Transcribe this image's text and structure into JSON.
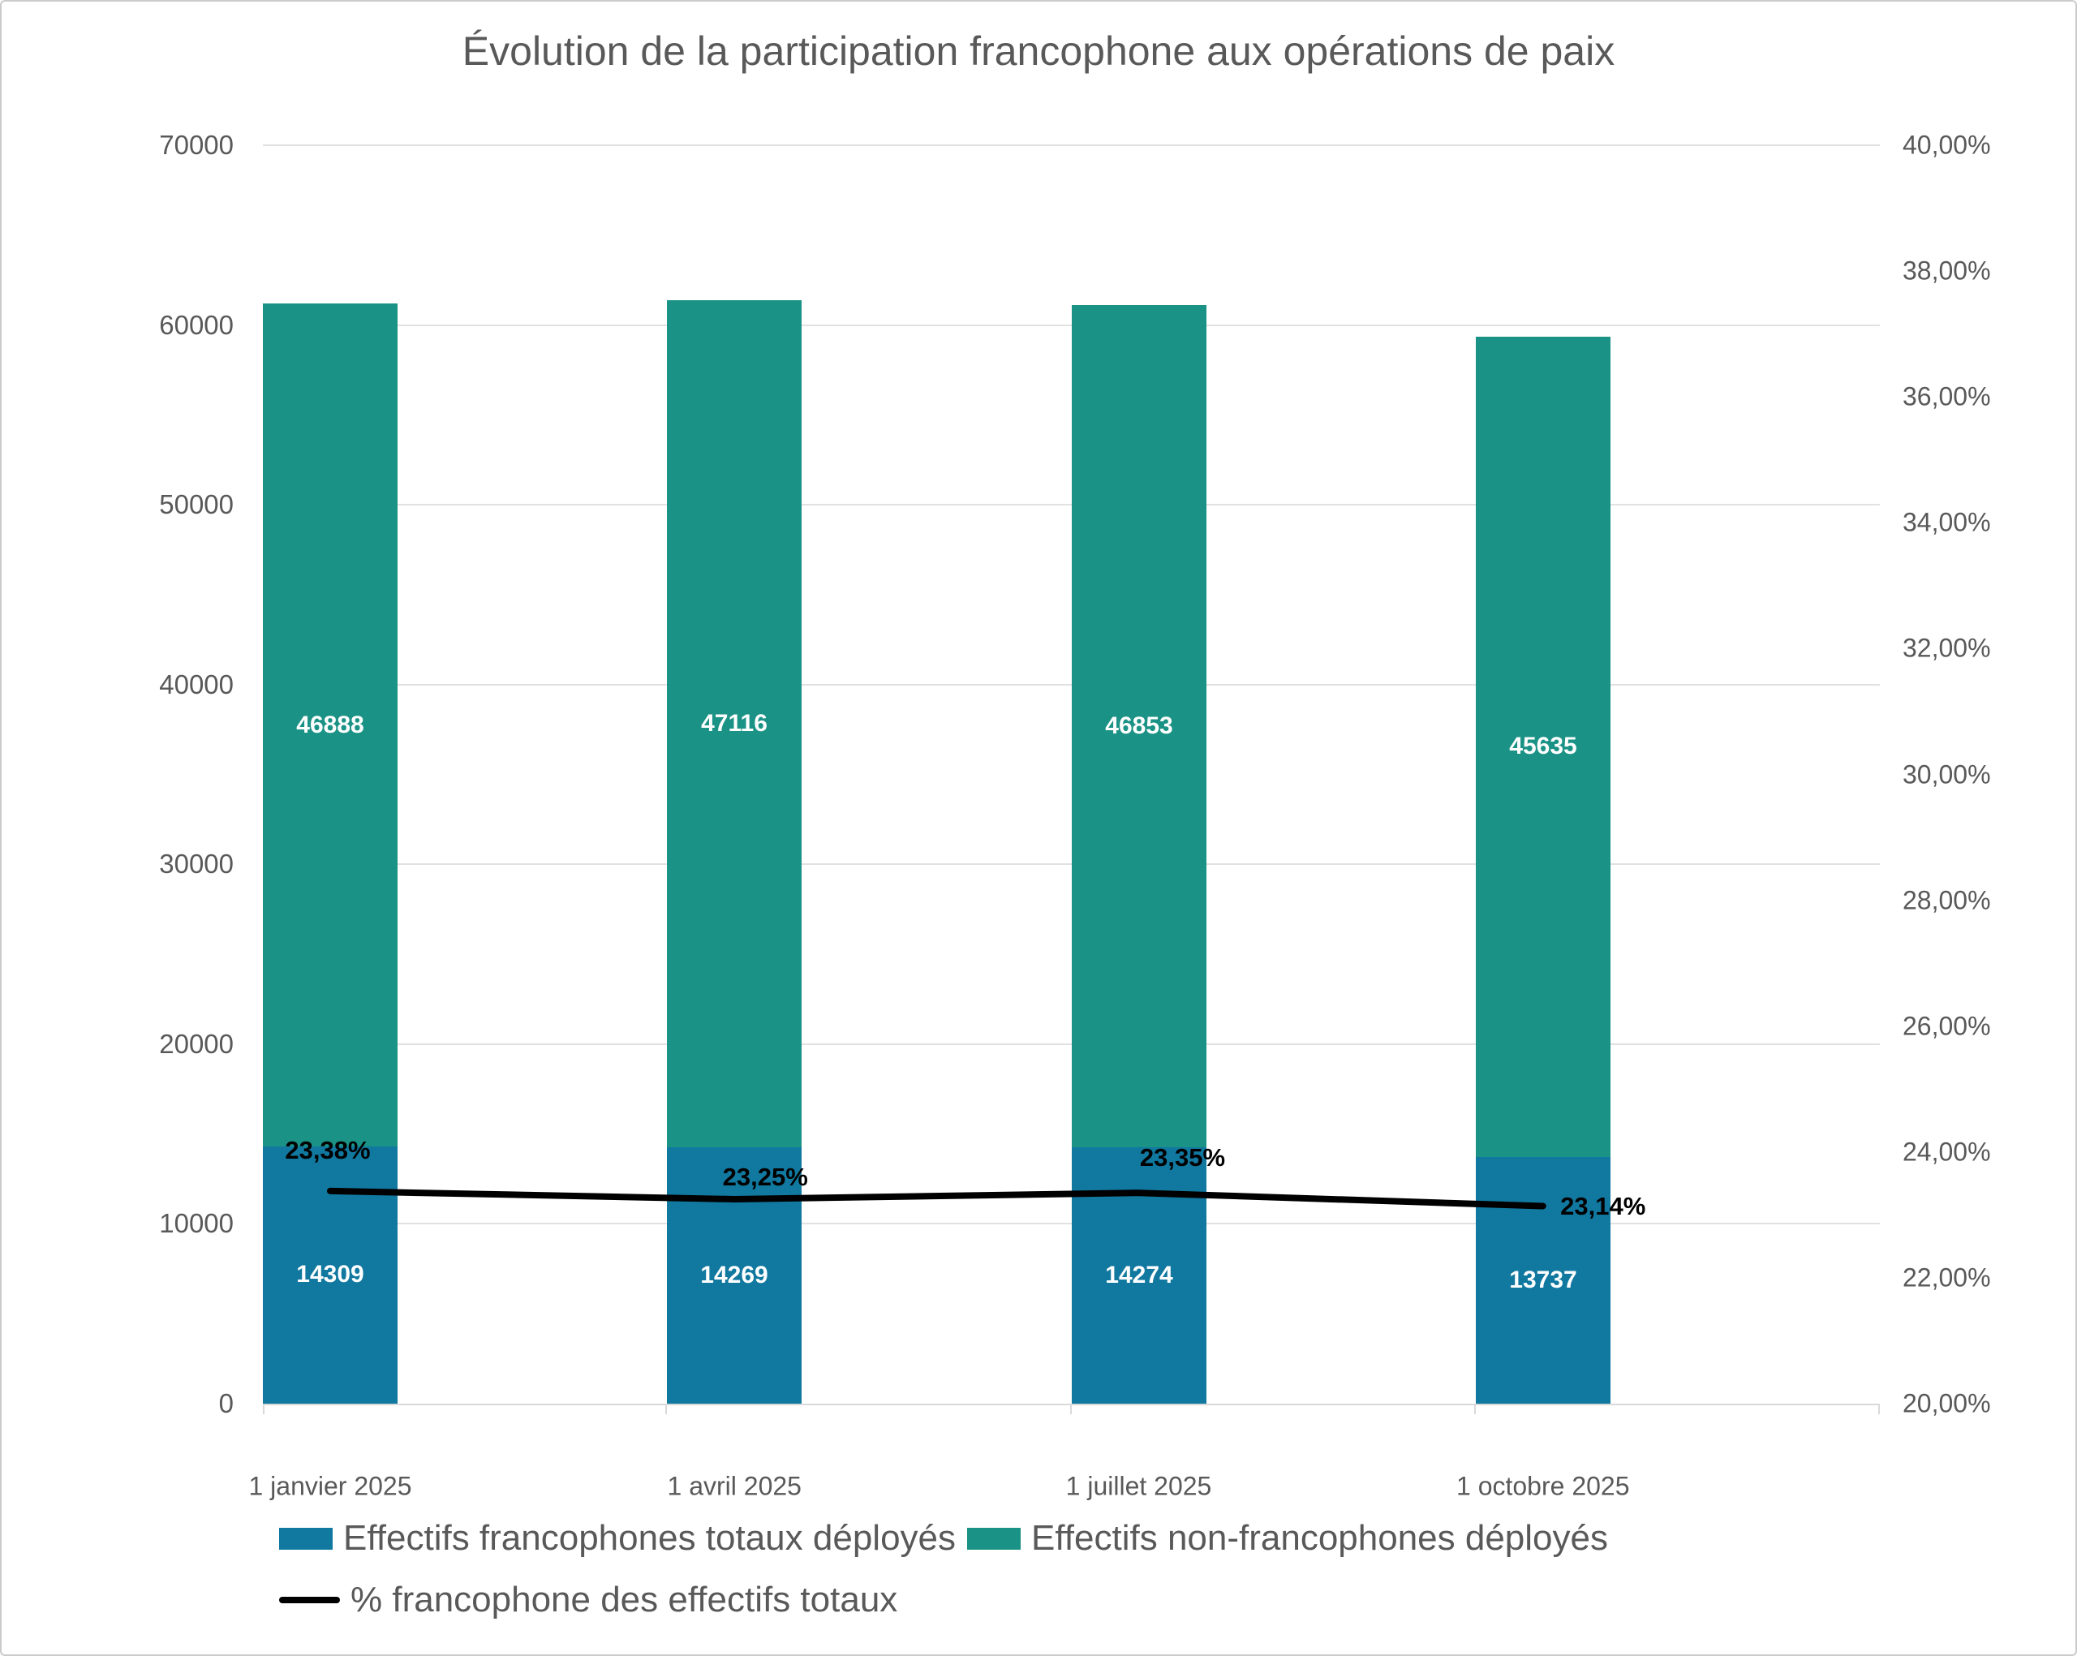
{
  "title": "Évolution de la participation francophone aux opérations de paix",
  "colors": {
    "francophone_bar": "#1178A0",
    "non_francophone_bar": "#1A9285",
    "percent_line": "#000000",
    "text": "#595959",
    "gridline": "#e1e1e1"
  },
  "chart_data": {
    "type": "combo: stacked bar + line",
    "title": "Évolution de la participation francophone aux opérations de paix",
    "categories": [
      "1 janvier 2025",
      "1 avril 2025",
      "1 juillet 2025",
      "1 octobre 2025"
    ],
    "series": [
      {
        "name": "Effectifs francophones totaux déployés",
        "type": "bar",
        "stack": 1,
        "axis": "left",
        "color": "#1178A0",
        "values": [
          14309,
          14269,
          14274,
          13737
        ],
        "labels": [
          "14309",
          "14269",
          "14274",
          "13737"
        ]
      },
      {
        "name": "Effectifs non-francophones déployés",
        "type": "bar",
        "stack": 1,
        "axis": "left",
        "color": "#1A9285",
        "values": [
          46888,
          47116,
          46853,
          45635
        ],
        "labels": [
          "46888",
          "47116",
          "46853",
          "45635"
        ]
      },
      {
        "name": "% francophone des effectifs totaux",
        "type": "line",
        "axis": "right",
        "color": "#000000",
        "values": [
          23.38,
          23.25,
          23.35,
          23.14
        ],
        "labels": [
          "23,38%",
          "23,25%",
          "23,35%",
          "23,14%"
        ]
      }
    ],
    "left_axis": {
      "min": 0,
      "max": 70000,
      "tick_values": [
        0,
        10000,
        20000,
        30000,
        40000,
        50000,
        60000,
        70000
      ],
      "tick_labels": [
        "0",
        "10000",
        "20000",
        "30000",
        "40000",
        "50000",
        "60000",
        "70000"
      ]
    },
    "right_axis": {
      "min": 20,
      "max": 40,
      "tick_values": [
        20,
        22,
        24,
        26,
        28,
        30,
        32,
        34,
        36,
        38,
        40
      ],
      "tick_labels": [
        "20,00%",
        "22,00%",
        "24,00%",
        "26,00%",
        "28,00%",
        "30,00%",
        "32,00%",
        "34,00%",
        "36,00%",
        "38,00%",
        "40,00%"
      ]
    },
    "grid": "horizontal, left axis only",
    "legend_position": "bottom-left, two rows"
  },
  "legend": {
    "row1": [
      {
        "label": "Effectifs francophones totaux déployés"
      },
      {
        "label": "Effectifs non-francophones déployés"
      }
    ],
    "row2": [
      {
        "label": "% francophone des effectifs totaux"
      }
    ]
  }
}
